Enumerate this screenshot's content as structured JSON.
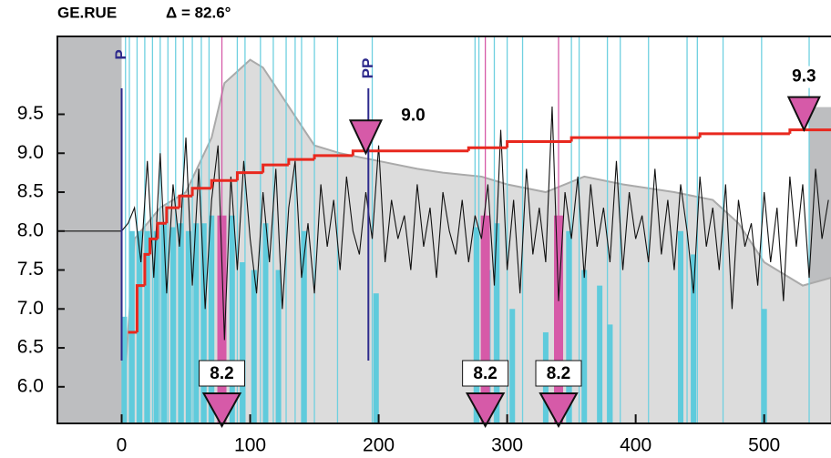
{
  "chart_data": {
    "type": "seismogram",
    "title": "GE.RUE",
    "subtitle": "Δ = 82.6°",
    "xlim": [
      -50,
      552
    ],
    "ylim": [
      5.53,
      10.5
    ],
    "xticks": [
      0,
      100,
      200,
      300,
      400,
      500
    ],
    "yticks": [
      {
        "value": 6,
        "label": "6.0"
      },
      6.5,
      {
        "value": 7,
        "label": "7.0"
      },
      7.5,
      {
        "value": 8,
        "label": "8.0"
      },
      8.5,
      {
        "value": 9,
        "label": "9.0"
      },
      9.5
    ],
    "shaded_x": [
      [
        -50,
        0
      ],
      [
        535,
        552
      ]
    ],
    "phases": [
      {
        "name": "P",
        "x": 0
      },
      {
        "name": "PP",
        "x": 192
      }
    ],
    "envelope": {
      "color": "#dcdcdc",
      "x": [
        0,
        10,
        30,
        50,
        70,
        80,
        100,
        110,
        130,
        150,
        170,
        200,
        230,
        250,
        280,
        300,
        330,
        360,
        390,
        430,
        460,
        480,
        500,
        530,
        552
      ],
      "values": [
        5.53,
        7.9,
        8.3,
        8.5,
        9.2,
        9.9,
        10.2,
        10.1,
        9.6,
        9.1,
        9.0,
        8.9,
        8.8,
        8.75,
        8.7,
        8.6,
        8.5,
        8.7,
        8.6,
        8.5,
        8.4,
        8.1,
        7.6,
        7.3,
        7.4
      ]
    },
    "cyan_lines": {
      "color": "#6fd0e0",
      "x": [
        3,
        6,
        12,
        18,
        24,
        30,
        36,
        42,
        48,
        55,
        62,
        68,
        90,
        96,
        108,
        118,
        128,
        135,
        140,
        150,
        168,
        195,
        275,
        278,
        290,
        300,
        312,
        350,
        356,
        378,
        388,
        410,
        440,
        448,
        468,
        498,
        535
      ]
    },
    "cyan_bars": {
      "color": "#5fcbdc",
      "x": [
        2,
        8,
        14,
        20,
        27,
        33,
        40,
        46,
        52,
        58,
        64,
        70,
        86,
        94,
        103,
        112,
        122,
        142,
        198,
        276,
        285,
        292,
        304,
        330,
        348,
        360,
        372,
        380,
        435,
        445,
        500
      ],
      "values": [
        6.9,
        8.0,
        8.0,
        8.0,
        8.0,
        8.1,
        8.05,
        8.1,
        8.0,
        8.1,
        8.1,
        8.2,
        8.2,
        7.6,
        7.5,
        8.1,
        7.5,
        8.0,
        7.2,
        8.05,
        7.5,
        8.1,
        7.0,
        6.7,
        8.0,
        7.5,
        7.3,
        6.8,
        8.0,
        7.7,
        7.0
      ]
    },
    "magenta_bars": {
      "color": "#d65aa8",
      "x": [
        78,
        283,
        340
      ],
      "values": [
        8.2,
        8.2,
        8.2
      ]
    },
    "waveform": {
      "color": "#111111",
      "x": [
        -50,
        -45,
        -40,
        -35,
        -30,
        -25,
        -20,
        -15,
        -10,
        -5,
        0,
        5,
        10,
        15,
        20,
        25,
        30,
        35,
        40,
        45,
        50,
        55,
        60,
        65,
        70,
        75,
        80,
        85,
        90,
        95,
        100,
        105,
        110,
        115,
        120,
        125,
        130,
        135,
        140,
        145,
        150,
        155,
        160,
        165,
        170,
        175,
        180,
        185,
        190,
        195,
        200,
        205,
        210,
        215,
        220,
        225,
        230,
        235,
        240,
        245,
        250,
        255,
        260,
        265,
        270,
        275,
        280,
        285,
        290,
        295,
        300,
        305,
        310,
        315,
        320,
        325,
        330,
        335,
        340,
        345,
        350,
        355,
        360,
        365,
        370,
        375,
        380,
        385,
        390,
        395,
        400,
        405,
        410,
        415,
        420,
        425,
        430,
        435,
        440,
        445,
        450,
        455,
        460,
        465,
        470,
        475,
        480,
        485,
        490,
        495,
        500,
        505,
        510,
        515,
        520,
        525,
        530,
        535,
        540,
        545,
        550
      ],
      "values": [
        8.0,
        8.0,
        8.0,
        8.0,
        8.0,
        8.0,
        8.0,
        8.0,
        8.0,
        8.0,
        8.0,
        8.1,
        8.3,
        7.6,
        8.9,
        7.4,
        9.0,
        7.2,
        8.6,
        7.8,
        9.2,
        7.3,
        8.8,
        7.0,
        8.4,
        9.1,
        6.6,
        8.7,
        7.5,
        8.9,
        7.9,
        7.2,
        8.5,
        7.6,
        8.8,
        7.0,
        8.3,
        8.9,
        7.4,
        8.1,
        7.2,
        8.6,
        7.8,
        8.4,
        7.5,
        8.7,
        8.0,
        7.7,
        8.5,
        7.9,
        9.1,
        7.6,
        8.4,
        7.9,
        8.2,
        7.5,
        8.6,
        7.8,
        8.3,
        7.4,
        8.5,
        8.0,
        7.7,
        8.4,
        7.6,
        8.2,
        7.9,
        8.6,
        7.3,
        9.3,
        7.5,
        8.4,
        7.2,
        8.8,
        7.7,
        8.3,
        7.6,
        9.6,
        7.1,
        8.5,
        7.9,
        8.7,
        7.4,
        8.6,
        7.8,
        8.3,
        7.6,
        8.9,
        7.5,
        8.5,
        7.9,
        8.2,
        7.6,
        8.8,
        7.7,
        8.4,
        7.5,
        8.6,
        8.0,
        7.2,
        8.7,
        7.8,
        8.3,
        7.5,
        8.6,
        7.0,
        8.4,
        7.8,
        8.1,
        7.3,
        8.5,
        7.6,
        8.3,
        7.1,
        8.7,
        7.8,
        8.6,
        7.4,
        8.8,
        7.9,
        8.4
      ]
    },
    "magnitude": {
      "color": "#e8281e",
      "x": [
        5,
        12,
        18,
        22,
        28,
        35,
        45,
        55,
        70,
        90,
        110,
        130,
        150,
        180,
        270,
        300,
        350,
        450,
        520,
        552
      ],
      "values": [
        6.7,
        7.3,
        7.7,
        7.9,
        8.1,
        8.3,
        8.45,
        8.55,
        8.65,
        8.75,
        8.85,
        8.92,
        8.97,
        9.03,
        9.07,
        9.15,
        9.2,
        9.25,
        9.3,
        9.3
      ]
    },
    "max_markers": {
      "color": "#d65aa8",
      "x": [
        190,
        531
      ],
      "values": [
        9.0,
        9.3
      ],
      "value_labels": [
        "9.0",
        "9.3"
      ]
    },
    "event_markers": {
      "color": "#d65aa8",
      "x": [
        78,
        283,
        340
      ],
      "values": [
        8.2,
        8.2,
        8.2
      ],
      "value_labels": [
        "8.2",
        "8.2",
        "8.2"
      ]
    }
  }
}
